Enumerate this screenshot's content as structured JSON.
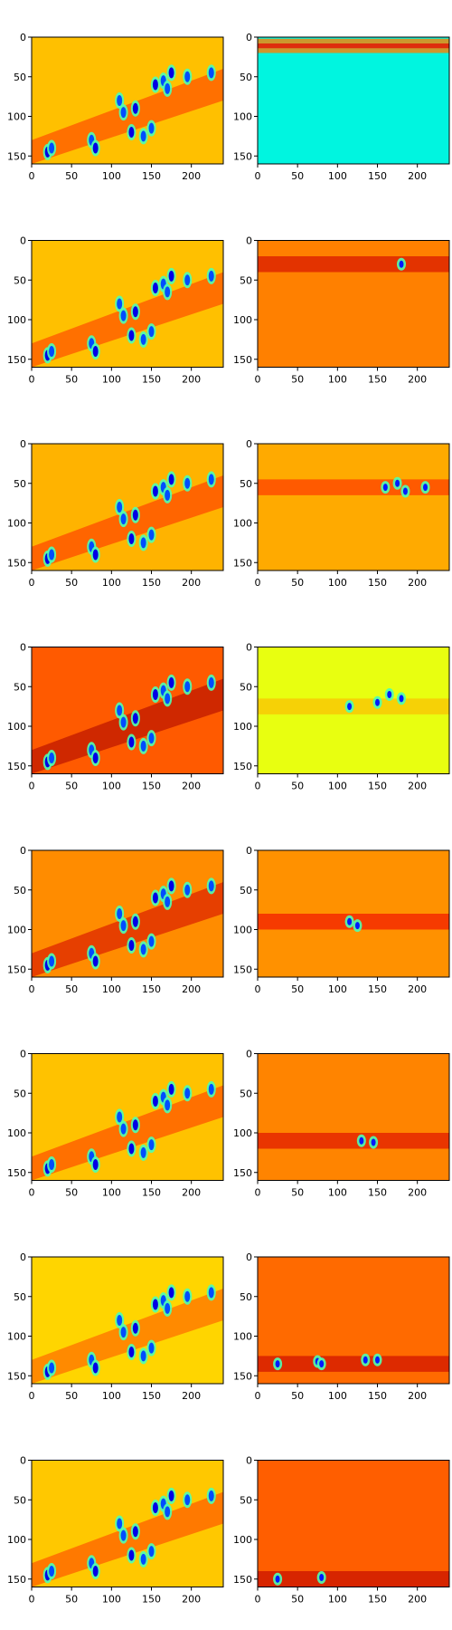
{
  "chart_data": {
    "type": "heatmap",
    "layout": {
      "rows": 8,
      "cols": 2
    },
    "colormap": "jet",
    "image_width": 240,
    "image_height": 160,
    "xlim": [
      0,
      240
    ],
    "ylim": [
      160,
      0
    ],
    "x_ticks": [
      0,
      50,
      100,
      150,
      200
    ],
    "y_ticks": [
      0,
      50,
      100,
      150
    ],
    "panels": [
      {
        "row": 0,
        "col": 0,
        "background": "#FFC000",
        "base_level": 0.73
      },
      {
        "row": 0,
        "col": 1,
        "background": "#00F5E0",
        "base_level": 0.38
      },
      {
        "row": 1,
        "col": 0,
        "background": "#FFC000",
        "base_level": 0.73
      },
      {
        "row": 1,
        "col": 1,
        "background": "#FF8000",
        "base_level": 0.84
      },
      {
        "row": 2,
        "col": 0,
        "background": "#FFB300",
        "base_level": 0.74
      },
      {
        "row": 2,
        "col": 1,
        "background": "#FFAA00",
        "base_level": 0.76
      },
      {
        "row": 3,
        "col": 0,
        "background": "#FF5A00",
        "base_level": 0.86
      },
      {
        "row": 3,
        "col": 1,
        "background": "#E8FF10",
        "base_level": 0.62
      },
      {
        "row": 4,
        "col": 0,
        "background": "#FF8C00",
        "base_level": 0.82
      },
      {
        "row": 4,
        "col": 1,
        "background": "#FF9100",
        "base_level": 0.81
      },
      {
        "row": 5,
        "col": 0,
        "background": "#FFC200",
        "base_level": 0.73
      },
      {
        "row": 5,
        "col": 1,
        "background": "#FF8400",
        "base_level": 0.83
      },
      {
        "row": 6,
        "col": 0,
        "background": "#FFD500",
        "base_level": 0.7
      },
      {
        "row": 6,
        "col": 1,
        "background": "#FF6A00",
        "base_level": 0.85
      },
      {
        "row": 7,
        "col": 0,
        "background": "#FFC800",
        "base_level": 0.72
      },
      {
        "row": 7,
        "col": 1,
        "background": "#FF5E00",
        "base_level": 0.86
      }
    ]
  }
}
